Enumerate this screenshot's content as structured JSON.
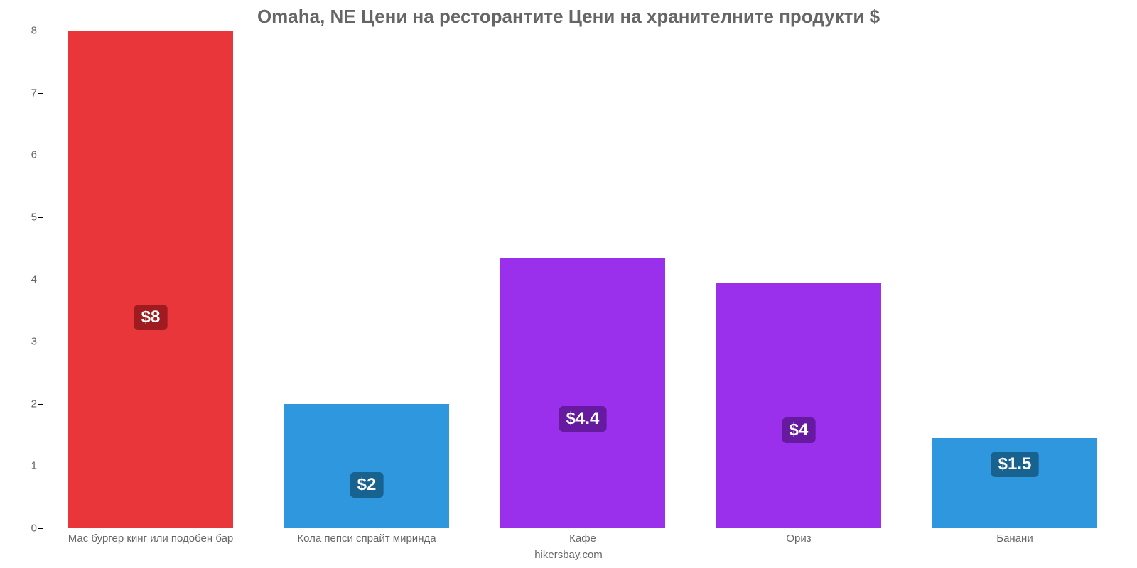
{
  "chart": {
    "type": "bar",
    "title": "Omaha, NE Цени на ресторантите Цени на хранителните продукти $",
    "title_color": "#666666",
    "title_fontsize": 26,
    "footer": "hikersbay.com",
    "footer_color": "#666666",
    "background_color": "#ffffff",
    "axis_color": "#000000",
    "label_color": "#666666",
    "label_fontsize": 15,
    "ylim": [
      0,
      8
    ],
    "ytick_step": 1,
    "bar_width_pct": 76,
    "categories": [
      "Мас бургер кинг или подобен бар",
      "Кола пепси спрайт миринда",
      "Кафе",
      "Ориз",
      "Банани"
    ],
    "values": [
      8,
      2,
      4.35,
      3.95,
      1.45
    ],
    "value_labels": [
      "$8",
      "$2",
      "$4.4",
      "$4",
      "$1.5"
    ],
    "bar_colors": [
      "#e8363a",
      "#2e97de",
      "#9b30ec",
      "#9b30ec",
      "#2e97de"
    ],
    "badge_colors": [
      "#9e1c1f",
      "#17628f",
      "#651aa0",
      "#651aa0",
      "#17628f"
    ],
    "badge_fontsize": 24,
    "badge_text_color": "#ffffff",
    "badge_offset_ratio": 0.45
  }
}
